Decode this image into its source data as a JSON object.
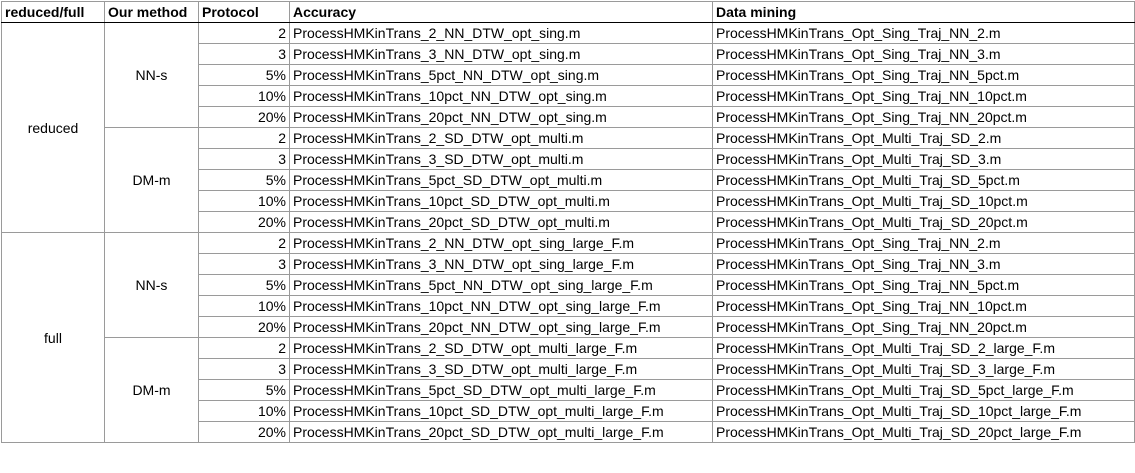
{
  "headers": {
    "reduced_full": "reduced/full",
    "method": "Our method",
    "protocol": "Protocol",
    "accuracy": "Accuracy",
    "data_mining": "Data mining"
  },
  "groups": [
    {
      "label": "reduced",
      "methods": [
        {
          "label": "NN-s",
          "rows": [
            {
              "protocol": "2",
              "accuracy": "ProcessHMKinTrans_2_NN_DTW_opt_sing.m",
              "data_mining": "ProcessHMKinTrans_Opt_Sing_Traj_NN_2.m"
            },
            {
              "protocol": "3",
              "accuracy": "ProcessHMKinTrans_3_NN_DTW_opt_sing.m",
              "data_mining": "ProcessHMKinTrans_Opt_Sing_Traj_NN_3.m"
            },
            {
              "protocol": "5%",
              "accuracy": "ProcessHMKinTrans_5pct_NN_DTW_opt_sing.m",
              "data_mining": "ProcessHMKinTrans_Opt_Sing_Traj_NN_5pct.m"
            },
            {
              "protocol": "10%",
              "accuracy": "ProcessHMKinTrans_10pct_NN_DTW_opt_sing.m",
              "data_mining": "ProcessHMKinTrans_Opt_Sing_Traj_NN_10pct.m"
            },
            {
              "protocol": "20%",
              "accuracy": "ProcessHMKinTrans_20pct_NN_DTW_opt_sing.m",
              "data_mining": "ProcessHMKinTrans_Opt_Sing_Traj_NN_20pct.m"
            }
          ]
        },
        {
          "label": "DM-m",
          "rows": [
            {
              "protocol": "2",
              "accuracy": "ProcessHMKinTrans_2_SD_DTW_opt_multi.m",
              "data_mining": "ProcessHMKinTrans_Opt_Multi_Traj_SD_2.m"
            },
            {
              "protocol": "3",
              "accuracy": "ProcessHMKinTrans_3_SD_DTW_opt_multi.m",
              "data_mining": "ProcessHMKinTrans_Opt_Multi_Traj_SD_3.m"
            },
            {
              "protocol": "5%",
              "accuracy": "ProcessHMKinTrans_5pct_SD_DTW_opt_multi.m",
              "data_mining": "ProcessHMKinTrans_Opt_Multi_Traj_SD_5pct.m"
            },
            {
              "protocol": "10%",
              "accuracy": "ProcessHMKinTrans_10pct_SD_DTW_opt_multi.m",
              "data_mining": "ProcessHMKinTrans_Opt_Multi_Traj_SD_10pct.m"
            },
            {
              "protocol": "20%",
              "accuracy": "ProcessHMKinTrans_20pct_SD_DTW_opt_multi.m",
              "data_mining": "ProcessHMKinTrans_Opt_Multi_Traj_SD_20pct.m"
            }
          ]
        }
      ]
    },
    {
      "label": "full",
      "methods": [
        {
          "label": "NN-s",
          "rows": [
            {
              "protocol": "2",
              "accuracy": "ProcessHMKinTrans_2_NN_DTW_opt_sing_large_F.m",
              "data_mining": "ProcessHMKinTrans_Opt_Sing_Traj_NN_2.m"
            },
            {
              "protocol": "3",
              "accuracy": "ProcessHMKinTrans_3_NN_DTW_opt_sing_large_F.m",
              "data_mining": "ProcessHMKinTrans_Opt_Sing_Traj_NN_3.m"
            },
            {
              "protocol": "5%",
              "accuracy": "ProcessHMKinTrans_5pct_NN_DTW_opt_sing_large_F.m",
              "data_mining": "ProcessHMKinTrans_Opt_Sing_Traj_NN_5pct.m"
            },
            {
              "protocol": "10%",
              "accuracy": "ProcessHMKinTrans_10pct_NN_DTW_opt_sing_large_F.m",
              "data_mining": "ProcessHMKinTrans_Opt_Sing_Traj_NN_10pct.m"
            },
            {
              "protocol": "20%",
              "accuracy": "ProcessHMKinTrans_20pct_NN_DTW_opt_sing_large_F.m",
              "data_mining": "ProcessHMKinTrans_Opt_Sing_Traj_NN_20pct.m"
            }
          ]
        },
        {
          "label": "DM-m",
          "rows": [
            {
              "protocol": "2",
              "accuracy": "ProcessHMKinTrans_2_SD_DTW_opt_multi_large_F.m",
              "data_mining": "ProcessHMKinTrans_Opt_Multi_Traj_SD_2_large_F.m"
            },
            {
              "protocol": "3",
              "accuracy": "ProcessHMKinTrans_3_SD_DTW_opt_multi_large_F.m",
              "data_mining": "ProcessHMKinTrans_Opt_Multi_Traj_SD_3_large_F.m"
            },
            {
              "protocol": "5%",
              "accuracy": "ProcessHMKinTrans_5pct_SD_DTW_opt_multi_large_F.m",
              "data_mining": "ProcessHMKinTrans_Opt_Multi_Traj_SD_5pct_large_F.m"
            },
            {
              "protocol": "10%",
              "accuracy": "ProcessHMKinTrans_10pct_SD_DTW_opt_multi_large_F.m",
              "data_mining": "ProcessHMKinTrans_Opt_Multi_Traj_SD_10pct_large_F.m"
            },
            {
              "protocol": "20%",
              "accuracy": "ProcessHMKinTrans_20pct_SD_DTW_opt_multi_large_F.m",
              "data_mining": "ProcessHMKinTrans_Opt_Multi_Traj_SD_20pct_large_F.m"
            }
          ]
        }
      ]
    }
  ]
}
